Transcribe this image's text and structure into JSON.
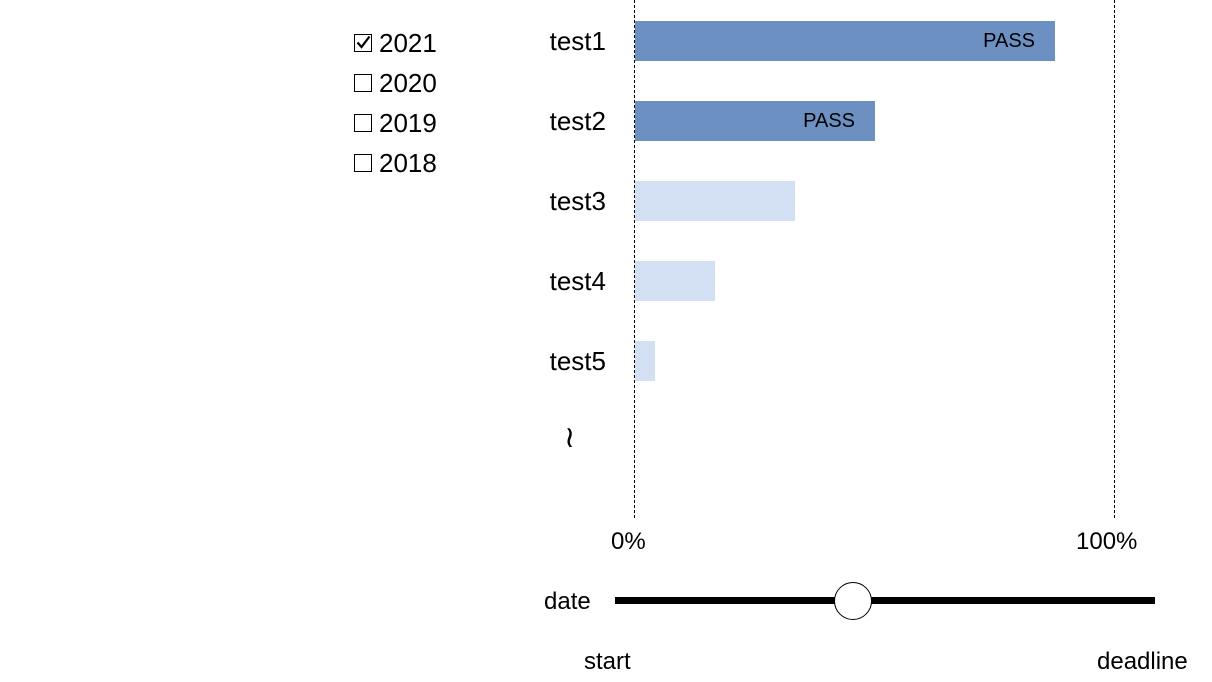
{
  "years": [
    {
      "label": "2021",
      "checked": true
    },
    {
      "label": "2020",
      "checked": false
    },
    {
      "label": "2019",
      "checked": false
    },
    {
      "label": "2018",
      "checked": false
    }
  ],
  "tests": [
    {
      "name": "test1",
      "progress": 0.875,
      "status": "pass",
      "label": "PASS"
    },
    {
      "name": "test2",
      "progress": 0.5,
      "status": "pass",
      "label": "PASS"
    },
    {
      "name": "test3",
      "progress": 0.333,
      "status": "pending",
      "label": ""
    },
    {
      "name": "test4",
      "progress": 0.167,
      "status": "pending",
      "label": ""
    },
    {
      "name": "test5",
      "progress": 0.042,
      "status": "pending",
      "label": ""
    }
  ],
  "more_indicator": "≀",
  "axis": {
    "min_label": "0%",
    "max_label": "100%"
  },
  "slider": {
    "label": "date",
    "start_label": "start",
    "end_label": "deadline",
    "value": 0.44
  },
  "colors": {
    "pass": "#6d90c3",
    "pending": "#d3e0f3"
  }
}
